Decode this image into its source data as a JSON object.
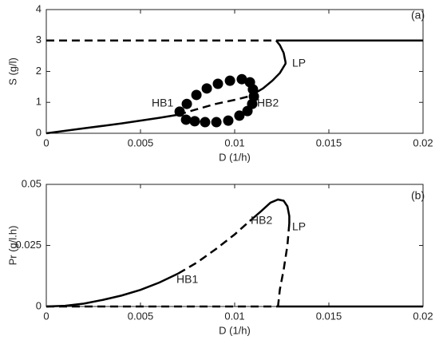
{
  "chart_data": [
    {
      "type": "line",
      "xlabel": "D (1/h)",
      "ylabel": "S (g/l)",
      "annotations": [
        "(a)",
        "LP",
        "HB1",
        "HB2"
      ],
      "xlim": [
        0,
        0.02
      ],
      "ylim": [
        0,
        4
      ],
      "xticks": [
        0,
        0.005,
        0.01,
        0.015,
        0.02
      ],
      "yticks": [
        0,
        1,
        2,
        3,
        4
      ],
      "series": [
        {
          "style": "dashed",
          "color": "#000",
          "x": [
            0,
            0.0122
          ],
          "values": [
            3,
            3
          ]
        },
        {
          "style": "solid",
          "color": "#000",
          "x": [
            0.0122,
            0.02
          ],
          "values": [
            3,
            3
          ]
        },
        {
          "style": "solid",
          "color": "#000",
          "x": [
            0,
            0.001,
            0.002,
            0.003,
            0.004,
            0.005,
            0.006,
            0.007
          ],
          "values": [
            0,
            0.08,
            0.16,
            0.24,
            0.32,
            0.41,
            0.5,
            0.6
          ]
        },
        {
          "style": "dashed",
          "color": "#000",
          "x": [
            0.007,
            0.008,
            0.009,
            0.01,
            0.0108
          ],
          "values": [
            0.6,
            0.78,
            0.95,
            1.08,
            1.2
          ]
        },
        {
          "style": "solid",
          "color": "#000",
          "x": [
            0.0108,
            0.0115,
            0.012,
            0.0124,
            0.0127,
            0.0127,
            0.0126,
            0.0124,
            0.0122
          ],
          "values": [
            1.2,
            1.45,
            1.7,
            1.95,
            2.25,
            2.3,
            2.6,
            2.85,
            3
          ]
        },
        {
          "style": "dots",
          "color": "#000",
          "x": [
            0.00708,
            0.00746,
            0.00797,
            0.00852,
            0.00911,
            0.00975,
            0.01038,
            0.01081,
            0.01097,
            0.01102,
            0.01093,
            0.01068,
            0.01025,
            0.00742,
            0.00788,
            0.00843,
            0.00903,
            0.00966
          ],
          "values": [
            0.7,
            0.95,
            1.24,
            1.45,
            1.6,
            1.7,
            1.75,
            1.65,
            1.42,
            1.19,
            0.95,
            0.72,
            0.57,
            0.44,
            0.39,
            0.36,
            0.36,
            0.41
          ]
        }
      ]
    },
    {
      "type": "line",
      "xlabel": "D (1/h)",
      "ylabel": "Pr (g/l.h)",
      "annotations": [
        "(b)",
        "HB2",
        "LP",
        "HB1"
      ],
      "xlim": [
        0,
        0.02
      ],
      "ylim": [
        0,
        0.05
      ],
      "xticks": [
        0,
        0.005,
        0.01,
        0.015,
        0.02
      ],
      "yticks": [
        0,
        0.025,
        0.05
      ],
      "series": [
        {
          "style": "dashed",
          "color": "#000",
          "x": [
            0,
            0.0123
          ],
          "values": [
            0,
            0
          ]
        },
        {
          "style": "solid",
          "color": "#000",
          "x": [
            0.0123,
            0.02
          ],
          "values": [
            0,
            0
          ]
        },
        {
          "style": "solid",
          "color": "#000",
          "x": [
            0,
            0.001,
            0.002,
            0.003,
            0.004,
            0.005,
            0.006,
            0.007
          ],
          "values": [
            0,
            0.0003,
            0.0012,
            0.0027,
            0.0045,
            0.0068,
            0.0098,
            0.0135
          ]
        },
        {
          "style": "dashed",
          "color": "#000",
          "x": [
            0.007,
            0.008,
            0.009,
            0.01,
            0.0108
          ],
          "values": [
            0.0135,
            0.018,
            0.0235,
            0.0295,
            0.035
          ]
        },
        {
          "style": "solid",
          "color": "#000",
          "x": [
            0.0108,
            0.0114,
            0.0119,
            0.0123,
            0.0126,
            0.0128,
            0.0129,
            0.0129
          ],
          "values": [
            0.035,
            0.039,
            0.0425,
            0.0438,
            0.0433,
            0.041,
            0.037,
            0.034
          ]
        },
        {
          "style": "dashed",
          "color": "#000",
          "x": [
            0.0129,
            0.0128,
            0.0126,
            0.0124,
            0.0123
          ],
          "values": [
            0.034,
            0.025,
            0.015,
            0.007,
            0
          ]
        }
      ]
    }
  ]
}
